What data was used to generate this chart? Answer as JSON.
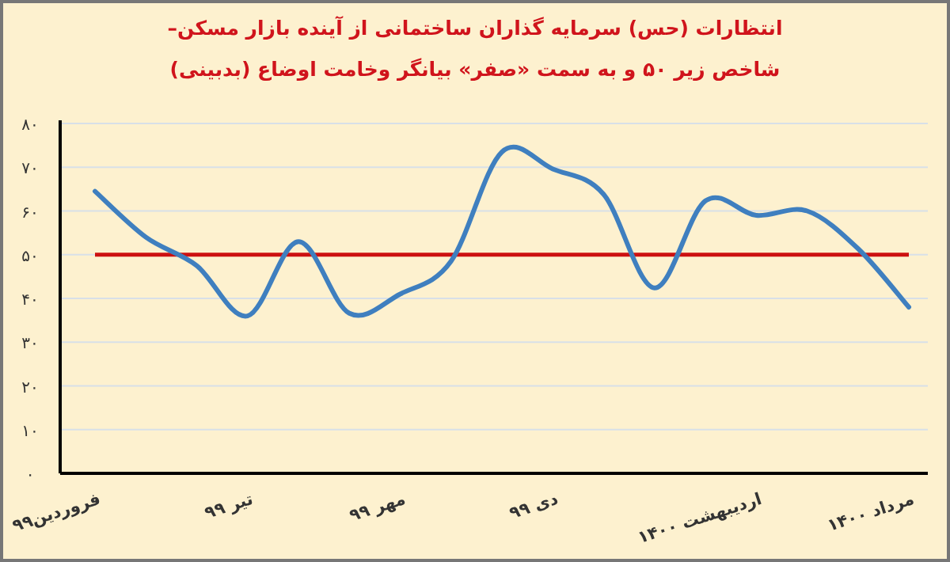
{
  "chart_data": {
    "type": "line",
    "title": "انتظارات (حس) سرمایه گذاران ساختمانی از آینده بازار مسکن–",
    "subtitle": "شاخص زیر ۵۰ و به سمت «صفر» بیانگر وخامت اوضاع (بدبینی)",
    "categories": [
      "فروردین۹۹",
      null,
      null,
      "تیر ۹۹",
      null,
      null,
      "مهر ۹۹",
      null,
      null,
      "دی ۹۹",
      null,
      null,
      null,
      "اردیبهشت ۱۴۰۰",
      null,
      null,
      "مرداد ۱۴۰۰"
    ],
    "series": [
      {
        "color": "#3f7fbf",
        "values": [
          64.5,
          54,
          47.5,
          36,
          53,
          36.6,
          41,
          48.5,
          73.5,
          69.6,
          63.8,
          42.4,
          62.3,
          59,
          60,
          51.4,
          38
        ]
      }
    ],
    "ylim": [
      0,
      80
    ],
    "yticks": [
      {
        "value": 0,
        "label": "۰"
      },
      {
        "value": 10,
        "label": "۱۰"
      },
      {
        "value": 20,
        "label": "۲۰"
      },
      {
        "value": 30,
        "label": "۳۰"
      },
      {
        "value": 40,
        "label": "۴۰"
      },
      {
        "value": 50,
        "label": "۵۰"
      },
      {
        "value": 60,
        "label": "۶۰"
      },
      {
        "value": 70,
        "label": "۷۰"
      },
      {
        "value": 80,
        "label": "۸۰"
      }
    ],
    "grid": "y",
    "ref_lines": [
      {
        "axis": "y",
        "value": 50,
        "color": "#cc1111"
      }
    ]
  }
}
